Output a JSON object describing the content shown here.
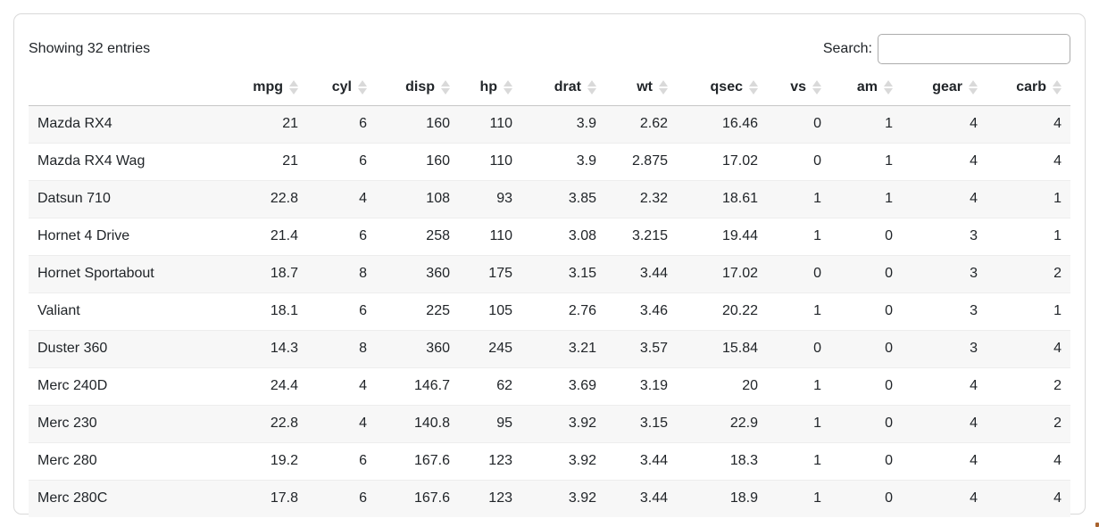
{
  "toolbar": {
    "showing_text": "Showing 32 entries",
    "search_label": "Search:",
    "search_value": "",
    "search_placeholder": ""
  },
  "table": {
    "columns": [
      {
        "label": "",
        "sortable": false
      },
      {
        "label": "mpg",
        "sortable": true
      },
      {
        "label": "cyl",
        "sortable": true
      },
      {
        "label": "disp",
        "sortable": true
      },
      {
        "label": "hp",
        "sortable": true
      },
      {
        "label": "drat",
        "sortable": true
      },
      {
        "label": "wt",
        "sortable": true
      },
      {
        "label": "qsec",
        "sortable": true
      },
      {
        "label": "vs",
        "sortable": true
      },
      {
        "label": "am",
        "sortable": true
      },
      {
        "label": "gear",
        "sortable": true
      },
      {
        "label": "carb",
        "sortable": true
      }
    ],
    "rows": [
      {
        "name": "Mazda RX4",
        "values": [
          "21",
          "6",
          "160",
          "110",
          "3.9",
          "2.62",
          "16.46",
          "0",
          "1",
          "4",
          "4"
        ]
      },
      {
        "name": "Mazda RX4 Wag",
        "values": [
          "21",
          "6",
          "160",
          "110",
          "3.9",
          "2.875",
          "17.02",
          "0",
          "1",
          "4",
          "4"
        ]
      },
      {
        "name": "Datsun 710",
        "values": [
          "22.8",
          "4",
          "108",
          "93",
          "3.85",
          "2.32",
          "18.61",
          "1",
          "1",
          "4",
          "1"
        ]
      },
      {
        "name": "Hornet 4 Drive",
        "values": [
          "21.4",
          "6",
          "258",
          "110",
          "3.08",
          "3.215",
          "19.44",
          "1",
          "0",
          "3",
          "1"
        ]
      },
      {
        "name": "Hornet Sportabout",
        "values": [
          "18.7",
          "8",
          "360",
          "175",
          "3.15",
          "3.44",
          "17.02",
          "0",
          "0",
          "3",
          "2"
        ]
      },
      {
        "name": "Valiant",
        "values": [
          "18.1",
          "6",
          "225",
          "105",
          "2.76",
          "3.46",
          "20.22",
          "1",
          "0",
          "3",
          "1"
        ]
      },
      {
        "name": "Duster 360",
        "values": [
          "14.3",
          "8",
          "360",
          "245",
          "3.21",
          "3.57",
          "15.84",
          "0",
          "0",
          "3",
          "4"
        ]
      },
      {
        "name": "Merc 240D",
        "values": [
          "24.4",
          "4",
          "146.7",
          "62",
          "3.69",
          "3.19",
          "20",
          "1",
          "0",
          "4",
          "2"
        ]
      },
      {
        "name": "Merc 230",
        "values": [
          "22.8",
          "4",
          "140.8",
          "95",
          "3.92",
          "3.15",
          "22.9",
          "1",
          "0",
          "4",
          "2"
        ]
      },
      {
        "name": "Merc 280",
        "values": [
          "19.2",
          "6",
          "167.6",
          "123",
          "3.92",
          "3.44",
          "18.3",
          "1",
          "0",
          "4",
          "4"
        ]
      },
      {
        "name": "Merc 280C",
        "values": [
          "17.8",
          "6",
          "167.6",
          "123",
          "3.92",
          "3.44",
          "18.9",
          "1",
          "0",
          "4",
          "4"
        ]
      }
    ]
  },
  "colors": {
    "text": "#212529",
    "card_border": "#d9d9d9",
    "header_border": "#c6c6c6",
    "row_border": "#ededed",
    "stripe": "#f7f7f7",
    "sort_icon": "#d9d9d9",
    "input_border": "#acacac"
  }
}
